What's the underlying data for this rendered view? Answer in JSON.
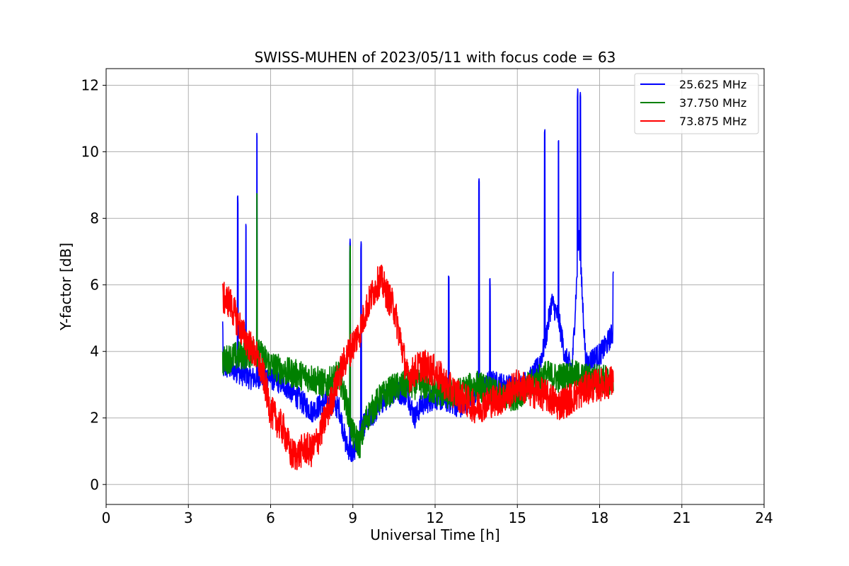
{
  "chart_data": {
    "type": "line",
    "title": "SWISS-MUHEN of 2023/05/11 with focus code = 63",
    "xlabel": "Universal Time [h]",
    "ylabel": "Y-factor [dB]",
    "xlim": [
      0,
      24
    ],
    "ylim": [
      -0.6,
      12.5
    ],
    "xticks": [
      0,
      3,
      6,
      9,
      12,
      15,
      18,
      21,
      24
    ],
    "yticks": [
      0,
      2,
      4,
      6,
      8,
      10,
      12
    ],
    "xtick_labels": [
      "0",
      "3",
      "6",
      "9",
      "12",
      "15",
      "18",
      "21",
      "24"
    ],
    "ytick_labels": [
      "0",
      "2",
      "4",
      "6",
      "8",
      "10",
      "12"
    ],
    "grid": true,
    "legend_position": "top-right",
    "series": [
      {
        "name": "25.625 MHz",
        "color": "#0000ff",
        "x": [
          4.25,
          4.5,
          4.75,
          5.0,
          5.25,
          5.5,
          5.75,
          6.0,
          6.5,
          7.0,
          7.5,
          8.0,
          8.5,
          8.75,
          9.0,
          9.25,
          9.5,
          9.75,
          10.0,
          10.5,
          11.0,
          11.25,
          11.5,
          12.0,
          12.5,
          13.0,
          13.5,
          13.75,
          14.0,
          14.5,
          15.0,
          15.5,
          15.75,
          16.0,
          16.25,
          16.5,
          16.75,
          17.0,
          17.25,
          17.5,
          17.75,
          18.0,
          18.25,
          18.5
        ],
        "y": [
          3.5,
          3.5,
          3.4,
          3.3,
          3.2,
          3.2,
          3.3,
          3.2,
          3.0,
          2.6,
          2.2,
          2.5,
          2.3,
          1.2,
          0.9,
          1.6,
          1.9,
          2.1,
          2.4,
          2.8,
          2.7,
          2.0,
          2.4,
          2.6,
          2.5,
          2.3,
          2.8,
          2.9,
          3.1,
          3.0,
          2.9,
          3.2,
          3.5,
          4.2,
          5.5,
          5.0,
          3.8,
          3.5,
          7.5,
          3.6,
          3.8,
          3.9,
          4.2,
          4.6
        ],
        "peaks": [
          [
            4.25,
            4.9
          ],
          [
            4.8,
            8.7
          ],
          [
            5.1,
            7.9
          ],
          [
            5.5,
            10.6
          ],
          [
            8.9,
            7.4
          ],
          [
            9.3,
            7.3
          ],
          [
            12.5,
            6.3
          ],
          [
            13.6,
            9.2
          ],
          [
            14.0,
            6.2
          ],
          [
            16.0,
            10.7
          ],
          [
            16.5,
            10.4
          ],
          [
            17.2,
            11.9
          ],
          [
            17.3,
            11.8
          ],
          [
            18.5,
            6.4
          ]
        ],
        "noise": 0.35
      },
      {
        "name": "37.750 MHz",
        "color": "#008000",
        "x": [
          4.25,
          4.5,
          5.0,
          5.5,
          6.0,
          6.5,
          7.0,
          7.5,
          8.0,
          8.5,
          8.75,
          9.0,
          9.25,
          9.5,
          10.0,
          10.5,
          11.0,
          11.5,
          12.0,
          12.5,
          13.0,
          13.5,
          14.0,
          14.5,
          15.0,
          15.5,
          16.0,
          16.5,
          17.0,
          17.5,
          18.0,
          18.5
        ],
        "y": [
          3.7,
          3.8,
          3.9,
          4.0,
          3.6,
          3.4,
          3.3,
          3.2,
          3.0,
          3.3,
          2.5,
          1.5,
          1.2,
          2.0,
          2.6,
          2.9,
          3.0,
          3.0,
          2.8,
          2.7,
          2.8,
          3.0,
          2.8,
          2.6,
          2.7,
          3.0,
          3.3,
          3.2,
          3.3,
          3.2,
          3.2,
          3.1
        ],
        "peaks": [
          [
            5.5,
            8.8
          ],
          [
            8.9,
            7.2
          ]
        ],
        "noise": 0.45
      },
      {
        "name": "73.875 MHz",
        "color": "#ff0000",
        "x": [
          4.25,
          4.5,
          5.0,
          5.5,
          5.75,
          6.0,
          6.25,
          6.5,
          6.75,
          7.0,
          7.25,
          7.5,
          7.75,
          8.0,
          8.25,
          8.5,
          8.75,
          9.0,
          9.25,
          9.5,
          9.75,
          10.0,
          10.25,
          10.5,
          10.75,
          11.0,
          11.5,
          12.0,
          12.5,
          13.0,
          13.5,
          14.0,
          14.5,
          15.0,
          15.5,
          16.0,
          16.5,
          17.0,
          17.5,
          18.0,
          18.5
        ],
        "y": [
          5.6,
          5.5,
          4.5,
          3.8,
          3.2,
          2.2,
          1.9,
          1.6,
          0.9,
          0.9,
          1.1,
          1.0,
          1.4,
          2.0,
          2.6,
          3.3,
          3.8,
          4.2,
          4.6,
          5.3,
          5.8,
          6.2,
          5.7,
          5.3,
          4.3,
          3.2,
          3.6,
          3.4,
          2.9,
          2.6,
          2.3,
          2.5,
          2.6,
          3.0,
          2.8,
          2.7,
          2.4,
          2.6,
          2.9,
          3.0,
          3.1
        ],
        "peaks": [],
        "noise": 0.5
      }
    ]
  }
}
